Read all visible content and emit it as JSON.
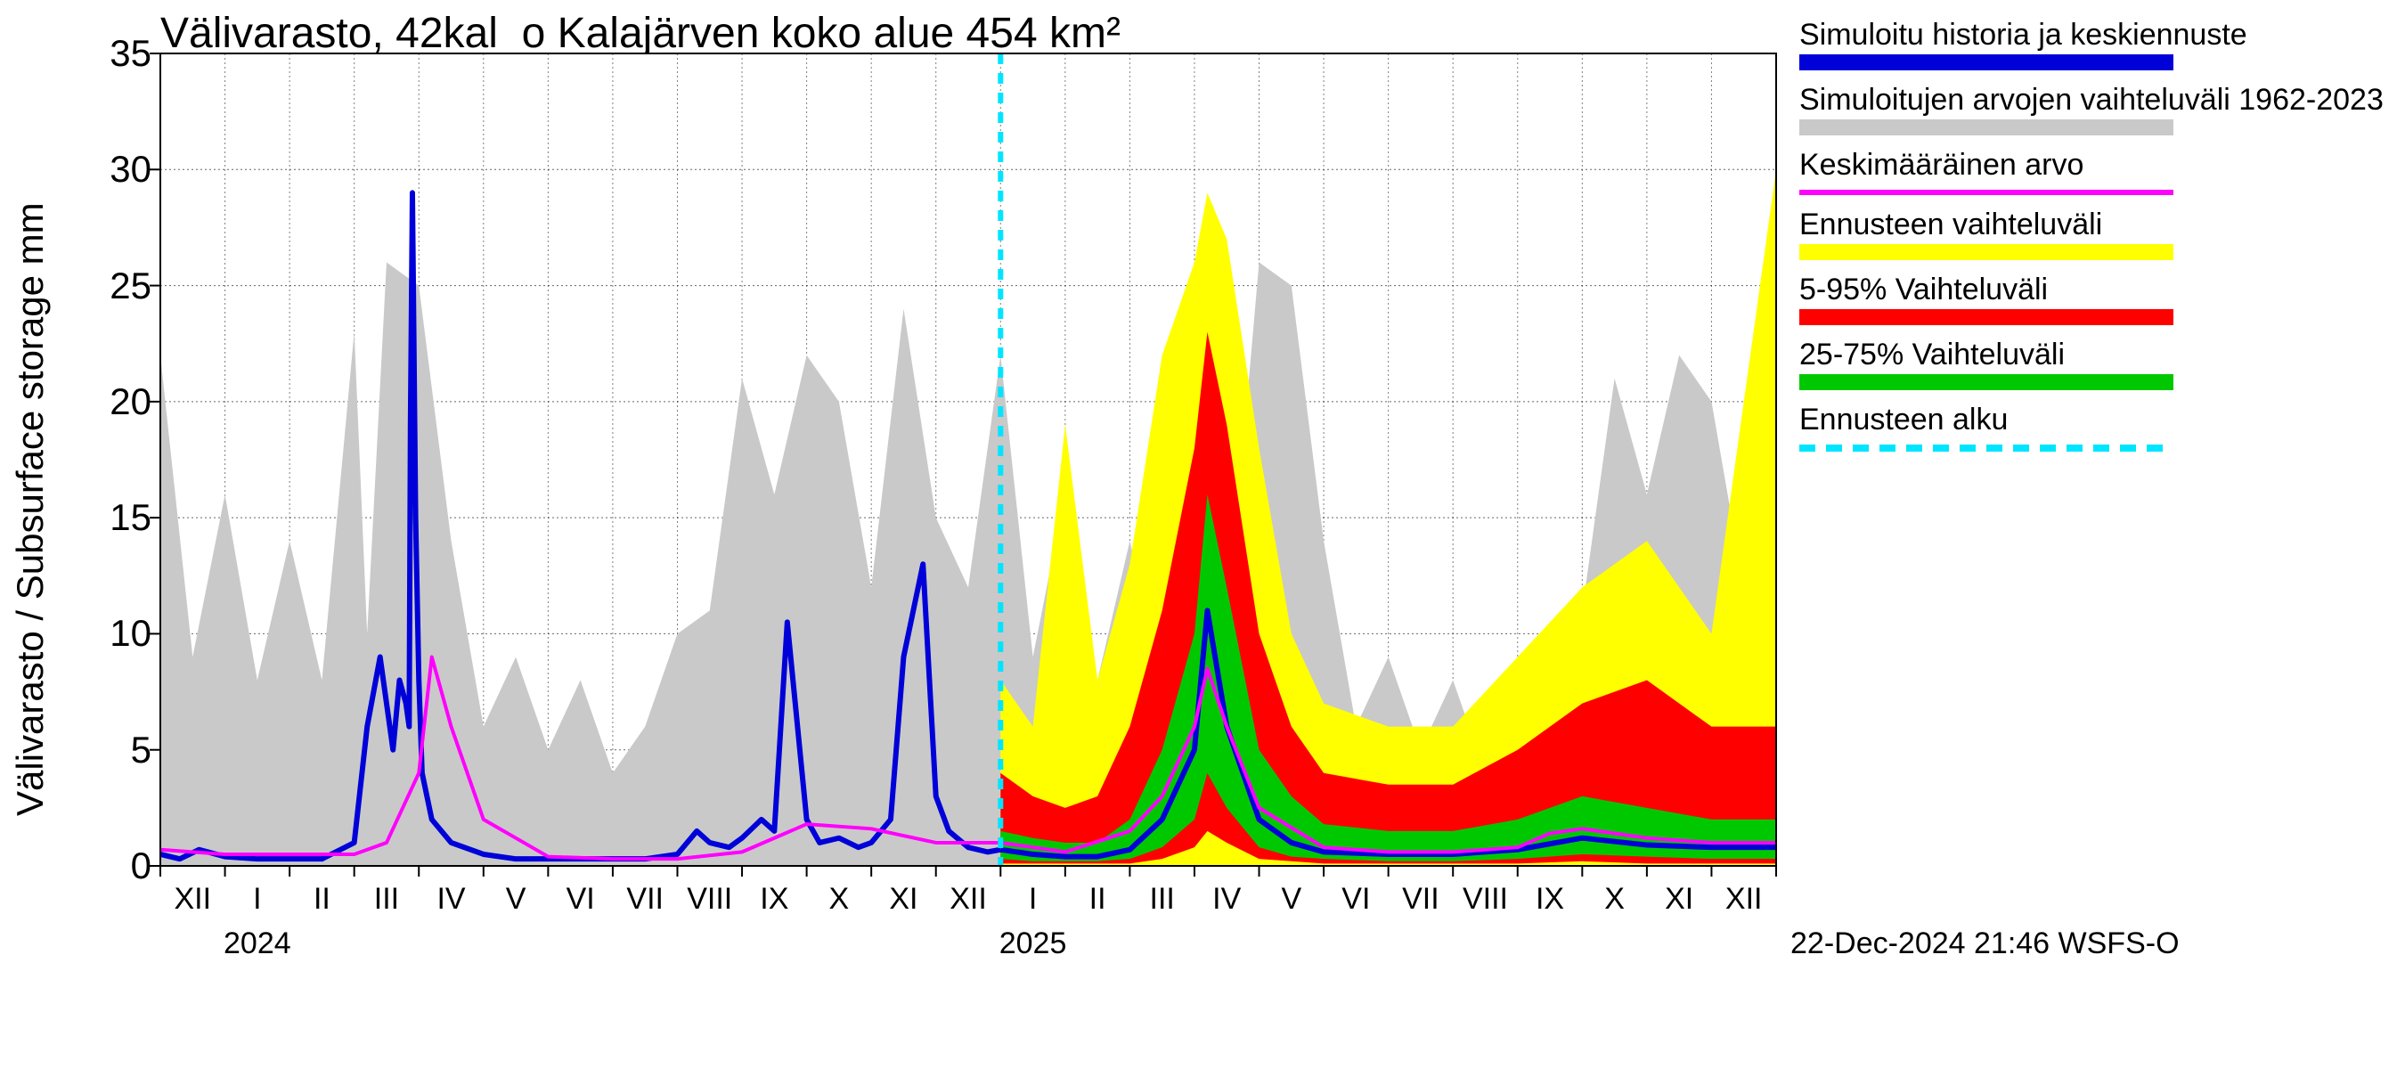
{
  "chart": {
    "type": "timeseries-forecast-fan",
    "title": "Välivarasto, 42kal_o Kalajärven koko alue 454 km²",
    "ylabel": "Välivarasto / Subsurface storage  mm",
    "timestamp": "22-Dec-2024 21:46 WSFS-O",
    "background_color": "#ffffff",
    "plot_border_color": "#000000",
    "grid_color": "#000000",
    "grid_dash": "2,3",
    "title_fontsize": 48,
    "label_fontsize": 42,
    "tick_fontsize": 34,
    "ylim": [
      0,
      35
    ],
    "ytick_step": 5,
    "yticks": [
      0,
      5,
      10,
      15,
      20,
      25,
      30,
      35
    ],
    "x_domain_months": 25,
    "forecast_start_month_index": 13,
    "xtick_labels": [
      "XII",
      "I",
      "II",
      "III",
      "IV",
      "V",
      "VI",
      "VII",
      "VIII",
      "IX",
      "X",
      "XI",
      "XII",
      "I",
      "II",
      "III",
      "IV",
      "V",
      "VI",
      "VII",
      "VIII",
      "IX",
      "X",
      "XI",
      "XII"
    ],
    "year_labels": [
      {
        "label": "2024",
        "at_month_index": 1.5
      },
      {
        "label": "2025",
        "at_month_index": 13.5
      }
    ],
    "legend": [
      {
        "key": "hist",
        "label": "Simuloitu historia ja keskiennuste",
        "swatch_type": "fill",
        "color": "#0000d8"
      },
      {
        "key": "range_hist",
        "label": "Simuloitujen arvojen vaihteluväli 1962-2023",
        "swatch_type": "fill",
        "color": "#c9c9c9"
      },
      {
        "key": "mean",
        "label": "Keskimääräinen arvo",
        "swatch_type": "line",
        "color": "#ff00ff"
      },
      {
        "key": "fc_range",
        "label": "Ennusteen vaihteluväli",
        "swatch_type": "fill",
        "color": "#ffff00"
      },
      {
        "key": "p5_95",
        "label": "5-95% Vaihteluväli",
        "swatch_type": "fill",
        "color": "#ff0000"
      },
      {
        "key": "p25_75",
        "label": "25-75% Vaihteluväli",
        "swatch_type": "fill",
        "color": "#00c800"
      },
      {
        "key": "fc_start",
        "label": "Ennusteen alku",
        "swatch_type": "dash",
        "color": "#00e5ff"
      }
    ],
    "colors": {
      "history_line": "#0000d8",
      "historical_range": "#c9c9c9",
      "mean_line": "#ff00ff",
      "forecast_total_range": "#ffff00",
      "forecast_5_95": "#ff0000",
      "forecast_25_75": "#00c800",
      "forecast_start_line": "#00e5ff"
    },
    "line_widths": {
      "history_line": 6,
      "mean_line": 4,
      "forecast_start_line": 6
    },
    "historical_range": {
      "x": [
        0,
        0.5,
        1,
        1.5,
        2,
        2.5,
        3,
        3.2,
        3.5,
        4,
        4.5,
        5,
        5.5,
        6,
        6.5,
        7,
        7.5,
        8,
        8.5,
        9,
        9.5,
        10,
        10.5,
        11,
        11.5,
        12,
        12.5,
        13,
        13.5,
        14,
        14.5,
        15,
        15.5,
        16,
        16.5,
        17,
        17.5,
        18,
        18.5,
        19,
        19.5,
        20,
        20.5,
        21,
        21.5,
        22,
        22.5,
        23,
        23.5,
        24,
        24.5,
        25
      ],
      "low": [
        0,
        0,
        0,
        0,
        0,
        0,
        0,
        0,
        0,
        0,
        0,
        0,
        0,
        0,
        0,
        0,
        0,
        0,
        0,
        0,
        0,
        0,
        0,
        0,
        0,
        0,
        0,
        0,
        0,
        0,
        0,
        0,
        0,
        0,
        0,
        0,
        0,
        0,
        0,
        0,
        0,
        0,
        0,
        0,
        0,
        0,
        0,
        0,
        0,
        0,
        0,
        0
      ],
      "high": [
        22,
        9,
        16,
        8,
        14,
        8,
        23,
        10,
        26,
        25,
        14,
        6,
        9,
        5,
        8,
        4,
        6,
        10,
        11,
        21,
        16,
        22,
        20,
        12,
        24,
        15,
        12,
        22,
        9,
        16,
        8,
        14,
        8,
        23,
        10,
        26,
        25,
        14,
        6,
        9,
        5,
        8,
        4,
        6,
        10,
        11,
        21,
        16,
        22,
        20,
        12,
        24
      ]
    },
    "mean_line": {
      "x": [
        0,
        1,
        2,
        3,
        3.5,
        4,
        4.2,
        4.5,
        5,
        6,
        7,
        8,
        9,
        9.5,
        10,
        11,
        12,
        13,
        14,
        15,
        15.5,
        16,
        16.2,
        16.5,
        17,
        18,
        19,
        20,
        21,
        21.5,
        22,
        23,
        24,
        25
      ],
      "y": [
        0.7,
        0.5,
        0.5,
        0.5,
        1,
        4,
        9,
        6,
        2,
        0.4,
        0.3,
        0.3,
        0.6,
        1.2,
        1.8,
        1.6,
        1,
        1,
        0.6,
        1.5,
        3,
        6,
        8.5,
        6,
        2.5,
        0.8,
        0.6,
        0.6,
        0.8,
        1.4,
        1.6,
        1.2,
        1.0,
        1.0
      ]
    },
    "history_line": {
      "x": [
        0,
        0.3,
        0.6,
        1,
        1.5,
        2,
        2.5,
        3,
        3.2,
        3.4,
        3.6,
        3.7,
        3.8,
        3.85,
        3.87,
        3.9,
        3.95,
        4,
        4.05,
        4.2,
        4.5,
        5,
        5.5,
        6,
        6.5,
        7,
        7.5,
        8,
        8.3,
        8.5,
        8.8,
        9,
        9.3,
        9.5,
        9.7,
        10,
        10.2,
        10.5,
        10.8,
        11,
        11.3,
        11.5,
        11.8,
        12,
        12.2,
        12.5,
        12.8,
        13
      ],
      "y": [
        0.5,
        0.3,
        0.7,
        0.4,
        0.3,
        0.3,
        0.3,
        1,
        6,
        9,
        5,
        8,
        7,
        6,
        19,
        29,
        15,
        8,
        4,
        2,
        1,
        0.5,
        0.3,
        0.3,
        0.3,
        0.3,
        0.3,
        0.5,
        1.5,
        1,
        0.8,
        1.2,
        2,
        1.5,
        10.5,
        2,
        1,
        1.2,
        0.8,
        1,
        2,
        9,
        13,
        3,
        1.5,
        0.8,
        0.6,
        0.7
      ]
    },
    "forecast_median": {
      "x": [
        13,
        13.5,
        14,
        14.5,
        15,
        15.5,
        16,
        16.2,
        16.5,
        17,
        17.5,
        18,
        19,
        20,
        21,
        22,
        23,
        24,
        25
      ],
      "y": [
        0.7,
        0.5,
        0.4,
        0.4,
        0.7,
        2,
        5,
        11,
        6,
        2,
        1,
        0.6,
        0.5,
        0.5,
        0.7,
        1.2,
        0.9,
        0.8,
        0.8
      ]
    },
    "forecast_25_75": {
      "x": [
        13,
        13.5,
        14,
        14.5,
        15,
        15.5,
        16,
        16.2,
        16.5,
        17,
        17.5,
        18,
        19,
        20,
        21,
        22,
        23,
        24,
        25
      ],
      "low": [
        0.3,
        0.2,
        0.2,
        0.2,
        0.3,
        0.8,
        2,
        4,
        2.5,
        0.8,
        0.4,
        0.3,
        0.2,
        0.2,
        0.3,
        0.5,
        0.4,
        0.3,
        0.3
      ],
      "high": [
        1.5,
        1.2,
        1,
        1,
        2,
        5,
        10,
        16,
        12,
        5,
        3,
        1.8,
        1.5,
        1.5,
        2,
        3,
        2.5,
        2,
        2
      ]
    },
    "forecast_5_95": {
      "x": [
        13,
        13.5,
        14,
        14.5,
        15,
        15.5,
        16,
        16.2,
        16.5,
        17,
        17.5,
        18,
        19,
        20,
        21,
        22,
        23,
        24,
        25
      ],
      "low": [
        0.1,
        0.1,
        0.1,
        0.1,
        0.1,
        0.3,
        0.8,
        1.5,
        1,
        0.3,
        0.2,
        0.1,
        0.1,
        0.1,
        0.1,
        0.2,
        0.1,
        0.1,
        0.1
      ],
      "high": [
        4,
        3,
        2.5,
        3,
        6,
        11,
        18,
        23,
        19,
        10,
        6,
        4,
        3.5,
        3.5,
        5,
        7,
        8,
        6,
        6
      ]
    },
    "forecast_total_range": {
      "x": [
        13,
        13.5,
        14,
        14.5,
        15,
        15.5,
        16,
        16.2,
        16.5,
        17,
        17.5,
        18,
        19,
        20,
        21,
        22,
        23,
        24,
        25
      ],
      "low": [
        0,
        0,
        0,
        0,
        0,
        0,
        0,
        0,
        0,
        0,
        0,
        0,
        0,
        0,
        0,
        0,
        0,
        0,
        0
      ],
      "high": [
        8,
        6,
        19,
        8,
        13,
        22,
        26,
        29,
        27,
        18,
        10,
        7,
        6,
        6,
        9,
        12,
        14,
        10,
        30
      ]
    }
  }
}
